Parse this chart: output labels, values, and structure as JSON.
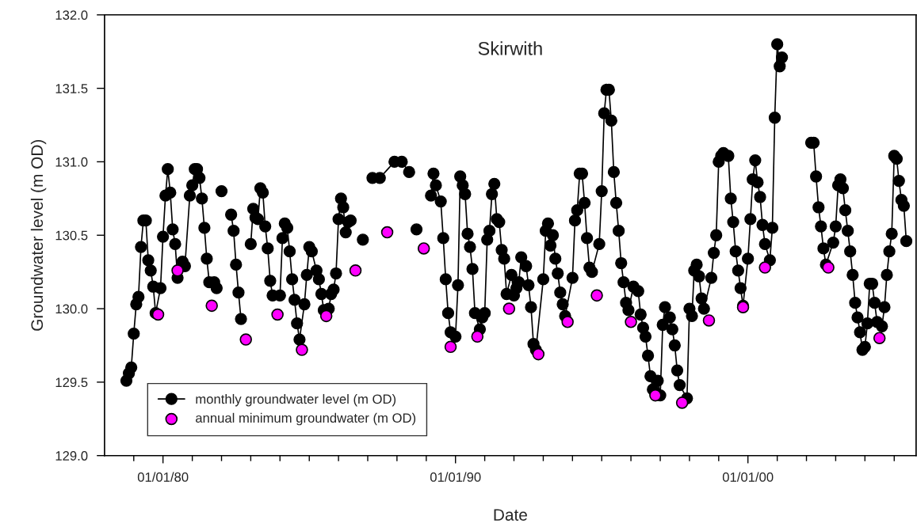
{
  "chart_data": {
    "type": "line",
    "title": "Skirwith",
    "xlabel": "Date",
    "ylabel": "Groundwater level (m OD)",
    "xlim": [
      "1978-01-01",
      "2005-10-01"
    ],
    "ylim": [
      129.0,
      132.0
    ],
    "xticks": [
      {
        "value": "1979-01-01",
        "label": null
      },
      {
        "value": "1980-01-01",
        "label": "01/01/80"
      },
      {
        "value": "1981-01-01",
        "label": null
      },
      {
        "value": "1982-01-01",
        "label": null
      },
      {
        "value": "1983-01-01",
        "label": null
      },
      {
        "value": "1984-01-01",
        "label": null
      },
      {
        "value": "1985-01-01",
        "label": null
      },
      {
        "value": "1986-01-01",
        "label": null
      },
      {
        "value": "1987-01-01",
        "label": null
      },
      {
        "value": "1988-01-01",
        "label": null
      },
      {
        "value": "1989-01-01",
        "label": null
      },
      {
        "value": "1990-01-01",
        "label": "01/01/90"
      },
      {
        "value": "1991-01-01",
        "label": null
      },
      {
        "value": "1992-01-01",
        "label": null
      },
      {
        "value": "1993-01-01",
        "label": null
      },
      {
        "value": "1994-01-01",
        "label": null
      },
      {
        "value": "1995-01-01",
        "label": null
      },
      {
        "value": "1996-01-01",
        "label": null
      },
      {
        "value": "1997-01-01",
        "label": null
      },
      {
        "value": "1998-01-01",
        "label": null
      },
      {
        "value": "1999-01-01",
        "label": null
      },
      {
        "value": "2000-01-01",
        "label": "01/01/00"
      },
      {
        "value": "2001-01-01",
        "label": null
      },
      {
        "value": "2002-01-01",
        "label": null
      },
      {
        "value": "2003-01-01",
        "label": null
      },
      {
        "value": "2004-01-01",
        "label": null
      },
      {
        "value": "2005-01-01",
        "label": null
      }
    ],
    "yticks": [
      {
        "value": 129.0,
        "label": "129.0"
      },
      {
        "value": 129.5,
        "label": "129.5"
      },
      {
        "value": 130.0,
        "label": "130.0"
      },
      {
        "value": 130.5,
        "label": "130.5"
      },
      {
        "value": 131.0,
        "label": "131.0"
      },
      {
        "value": 131.5,
        "label": "131.5"
      },
      {
        "value": 132.0,
        "label": "132.0"
      }
    ],
    "grid": false,
    "legend": "bottom left",
    "marker": "circle",
    "series": [
      {
        "name": "monthly groundwater level (m OD)",
        "color": "#000000",
        "x": [
          "1978-10",
          "1978-11",
          "1978-12",
          "1979-01",
          "1979-02",
          "1979-03",
          "1979-04",
          "1979-05",
          "1979-06",
          "1979-07",
          "1979-08",
          "1979-09",
          "1979-10",
          "1979-12",
          "1980-01",
          "1980-02",
          "1980-03",
          "1980-04",
          "1980-05",
          "1980-06",
          "1980-07",
          "1980-09",
          "1980-10",
          "1980-12",
          "1981-01",
          "1981-02",
          "1981-03",
          "1981-04",
          "1981-05",
          "1981-06",
          "1981-07",
          "1981-08",
          "1981-10",
          "1981-11",
          "1981-12",
          "1982-01",
          "1982-03",
          "1982-05",
          "1982-06",
          "1982-07",
          "1982-08",
          "1982-09",
          "1982-11",
          "1983-01",
          "1983-02",
          "1983-03",
          "1983-04",
          "1983-05",
          "1983-06",
          "1983-07",
          "1983-08",
          "1983-09",
          "1983-10",
          "1984-01",
          "1984-02",
          "1984-03",
          "1984-04",
          "1984-05",
          "1984-06",
          "1984-07",
          "1984-08",
          "1984-09",
          "1984-11",
          "1984-12",
          "1985-01",
          "1985-02",
          "1985-04",
          "1985-05",
          "1985-06",
          "1985-07",
          "1985-09",
          "1985-10",
          "1985-11",
          "1985-12",
          "1986-01",
          "1986-02",
          "1986-03",
          "1986-04",
          "1986-05",
          "1986-06",
          "1986-09",
          "1986-11",
          "1987-01",
          "1987-03",
          "1987-06",
          "1987-12",
          "1988-03",
          "1988-06",
          "1988-08",
          "1988-09",
          "1988-12",
          "1989-03",
          "1989-04",
          "1989-05",
          "1989-07",
          "1989-08",
          "1989-09",
          "1989-10",
          "1989-11",
          "1990-01",
          "1990-02",
          "1990-03",
          "1990-04",
          "1990-05",
          "1990-06",
          "1990-07",
          "1990-08",
          "1990-09",
          "1990-11",
          "1990-12",
          "1991-01",
          "1991-02",
          "1991-03",
          "1991-04",
          "1991-05",
          "1991-06",
          "1991-07",
          "1991-08",
          "1991-09",
          "1991-10",
          "1991-12",
          "1992-01",
          "1992-02",
          "1992-03",
          "1992-04",
          "1992-06",
          "1992-07",
          "1992-08",
          "1992-09",
          "1992-10",
          "1993-01",
          "1993-02",
          "1993-03",
          "1993-04",
          "1993-05",
          "1993-06",
          "1993-07",
          "1993-08",
          "1993-09",
          "1993-10",
          "1994-01",
          "1994-02",
          "1994-03",
          "1994-04",
          "1994-05",
          "1994-06",
          "1994-07",
          "1994-08",
          "1994-09",
          "1994-12",
          "1995-01",
          "1995-02",
          "1995-03",
          "1995-04",
          "1995-05",
          "1995-06",
          "1995-07",
          "1995-08",
          "1995-09",
          "1995-10",
          "1995-11",
          "1995-12",
          "1996-02",
          "1996-04",
          "1996-05",
          "1996-06",
          "1996-07",
          "1996-08",
          "1996-09",
          "1996-10",
          "1996-12",
          "1997-01",
          "1997-02",
          "1997-03",
          "1997-05",
          "1997-06",
          "1997-07",
          "1997-08",
          "1997-09",
          "1997-12",
          "1998-01",
          "1998-02",
          "1998-03",
          "1998-04",
          "1998-05",
          "1998-06",
          "1998-07",
          "1998-10",
          "1998-11",
          "1998-12",
          "1999-01",
          "1999-02",
          "1999-03",
          "1999-05",
          "1999-06",
          "1999-07",
          "1999-08",
          "1999-09",
          "1999-10",
          "1999-11",
          "2000-01",
          "2000-02",
          "2000-03",
          "2000-04",
          "2000-05",
          "2000-06",
          "2000-07",
          "2000-08",
          "2000-10",
          "2000-11",
          "2000-12",
          "2001-01",
          "2001-02",
          "2001-03",
          "2001-08",
          "2002-03",
          "2002-04",
          "2002-05",
          "2002-06",
          "2002-07",
          "2002-08",
          "2002-09",
          "2002-12",
          "2003-01",
          "2003-02",
          "2003-03",
          "2003-04",
          "2003-05",
          "2003-06",
          "2003-07",
          "2003-08",
          "2003-09",
          "2003-10",
          "2003-11",
          "2003-12",
          "2004-01",
          "2004-02",
          "2004-03",
          "2004-04",
          "2004-05",
          "2004-06",
          "2004-08",
          "2004-09",
          "2004-10",
          "2004-11",
          "2004-12",
          "2005-01",
          "2005-02",
          "2005-03",
          "2005-04",
          "2005-05",
          "2005-06"
        ],
        "values": [
          129.51,
          129.56,
          129.6,
          129.83,
          130.03,
          130.08,
          130.42,
          130.6,
          130.6,
          130.33,
          130.26,
          130.15,
          129.97,
          130.14,
          130.49,
          130.77,
          130.95,
          130.79,
          130.54,
          130.44,
          130.21,
          130.32,
          130.29,
          130.77,
          130.84,
          130.95,
          130.95,
          130.89,
          130.75,
          130.55,
          130.34,
          130.18,
          130.18,
          130.14,
          null,
          130.8,
          null,
          130.64,
          130.53,
          130.3,
          130.11,
          129.93,
          null,
          130.44,
          130.68,
          130.62,
          130.61,
          130.82,
          130.79,
          130.56,
          130.41,
          130.19,
          130.09,
          130.09,
          130.48,
          130.58,
          130.55,
          130.39,
          130.2,
          130.06,
          129.9,
          129.79,
          130.03,
          130.23,
          130.42,
          130.39,
          130.26,
          130.2,
          130.1,
          129.99,
          130.0,
          130.1,
          130.13,
          130.24,
          130.61,
          130.75,
          130.69,
          130.52,
          130.59,
          130.6,
          null,
          130.47,
          null,
          130.89,
          130.89,
          131.0,
          131.0,
          130.93,
          null,
          130.54,
          null,
          130.77,
          130.92,
          130.84,
          130.73,
          130.48,
          130.2,
          129.97,
          129.84,
          129.81,
          130.16,
          130.9,
          130.84,
          130.78,
          130.51,
          130.42,
          130.27,
          129.97,
          129.86,
          129.94,
          129.97,
          130.47,
          130.53,
          130.78,
          130.85,
          130.61,
          130.59,
          130.4,
          130.34,
          130.1,
          130.23,
          130.09,
          130.14,
          130.18,
          130.35,
          130.29,
          130.16,
          130.01,
          129.76,
          129.72,
          130.2,
          130.53,
          130.58,
          130.43,
          130.5,
          130.34,
          130.24,
          130.11,
          130.03,
          129.95,
          130.21,
          130.6,
          130.67,
          130.92,
          130.92,
          130.72,
          130.48,
          130.28,
          130.25,
          130.44,
          130.8,
          131.33,
          131.49,
          131.49,
          131.28,
          130.93,
          130.72,
          130.53,
          130.31,
          130.18,
          130.04,
          129.99,
          130.15,
          130.12,
          129.96,
          129.87,
          129.81,
          129.68,
          129.54,
          129.45,
          129.51,
          129.41,
          129.89,
          130.01,
          129.94,
          129.86,
          129.75,
          129.58,
          129.48,
          129.39,
          130.0,
          129.95,
          130.26,
          130.3,
          130.22,
          130.07,
          130.0,
          130.21,
          130.38,
          130.5,
          131.0,
          131.04,
          131.06,
          131.04,
          130.75,
          130.59,
          130.39,
          130.26,
          130.14,
          130.02,
          130.34,
          130.61,
          130.88,
          131.01,
          130.86,
          130.76,
          130.57,
          130.44,
          130.33,
          130.55,
          131.3,
          131.8,
          131.65,
          131.71,
          null,
          131.13,
          131.13,
          130.9,
          130.69,
          130.56,
          130.41,
          130.3,
          130.45,
          130.56,
          130.84,
          130.88,
          130.82,
          130.67,
          130.53,
          130.39,
          130.23,
          130.04,
          129.94,
          129.84,
          129.72,
          129.74,
          129.9,
          130.17,
          130.17,
          130.04,
          129.91,
          129.88,
          130.01,
          130.23,
          130.39,
          130.51,
          131.04,
          131.02,
          130.87,
          130.74,
          130.7,
          130.46
        ]
      },
      {
        "name": "annual minimum groundwater (m OD)",
        "type": "scatter",
        "color": "#ff00ff",
        "x": [
          "1979-11",
          "1980-07",
          "1981-09",
          "1982-11",
          "1983-12",
          "1984-10",
          "1985-08",
          "1986-08",
          "1987-09",
          "1988-12",
          "1989-11",
          "1990-10",
          "1991-11",
          "1992-11",
          "1993-11",
          "1994-11",
          "1996-01",
          "1996-11",
          "1997-10",
          "1998-09",
          "1999-11",
          "2000-08",
          "2002-10",
          "2004-07"
        ],
        "values": [
          129.96,
          130.26,
          130.02,
          129.79,
          129.96,
          129.72,
          129.95,
          130.26,
          130.52,
          130.41,
          129.74,
          129.81,
          130.0,
          129.69,
          129.91,
          130.09,
          129.91,
          129.41,
          129.36,
          129.92,
          130.01,
          130.28,
          130.28,
          129.8
        ]
      }
    ]
  }
}
